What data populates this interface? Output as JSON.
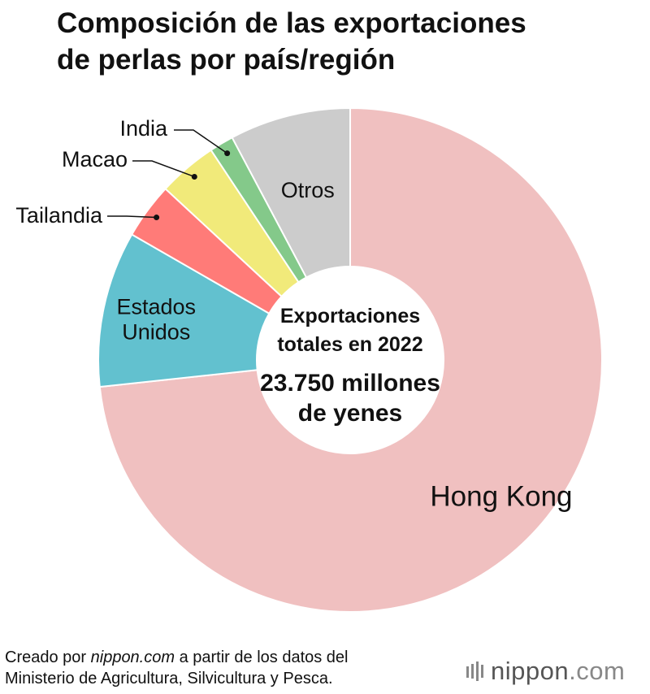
{
  "title_lines": [
    "Composición de las exportaciones",
    "de perlas por país/región"
  ],
  "center": {
    "lines": [
      "Exportaciones",
      "totales en 2022"
    ],
    "value_lines": [
      "23.750 millones",
      "de yenes"
    ]
  },
  "chart_data": {
    "type": "pie",
    "variant": "donut",
    "title": "Composición de las exportaciones de perlas por país/región",
    "slices": [
      {
        "label": "Hong Kong",
        "value": 75.5,
        "color": "#F0C0C0"
      },
      {
        "label": "Estados\nUnidos",
        "value": 10.3,
        "color": "#62C1CF"
      },
      {
        "label": "Tailandia",
        "value": 3.7,
        "color": "#FF7B78"
      },
      {
        "label": "Macao",
        "value": 3.9,
        "color": "#F1EA7A"
      },
      {
        "label": "India",
        "value": 1.6,
        "color": "#84C98A"
      },
      {
        "label": "Otros",
        "value": 8.0,
        "color": "#CCCCCC"
      }
    ]
  },
  "footer": {
    "line1_prefix": "Creado por ",
    "line1_italic": "nippon.com",
    "line1_suffix": " a partir de los datos del",
    "line2": "Ministerio de Agricultura, Silvicultura y Pesca."
  },
  "brand": {
    "name": "nippon",
    "tld": ".com"
  }
}
